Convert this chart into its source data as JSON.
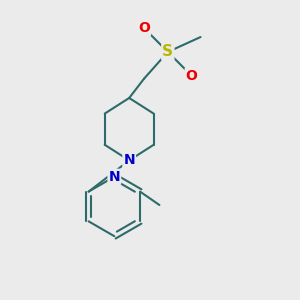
{
  "bg_color": "#ebebeb",
  "bond_color": "#2d6b6b",
  "bond_width": 1.5,
  "atom_N_color": "#0000cc",
  "atom_S_color": "#b8b800",
  "atom_O_color": "#ee0000",
  "font_size": 10,
  "figsize": [
    3.0,
    3.0
  ],
  "dpi": 100,
  "xlim": [
    0,
    10
  ],
  "ylim": [
    0,
    10
  ]
}
